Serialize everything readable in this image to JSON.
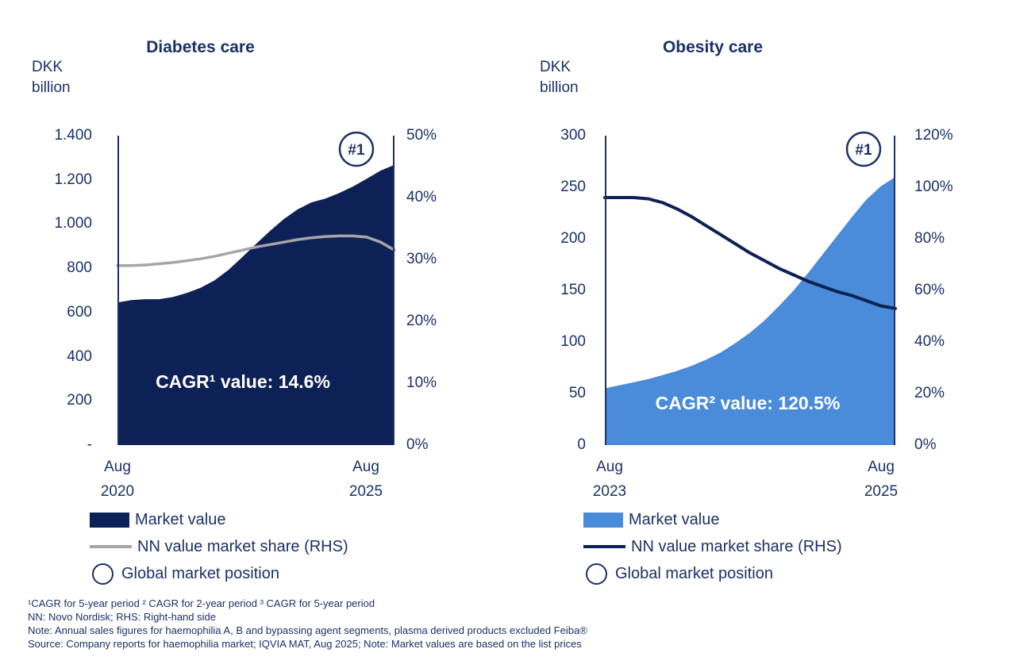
{
  "colors": {
    "navy_text": "#1B3166",
    "navy_fill": "#0E2156",
    "light_blue": "#4A8CD9",
    "gray_line": "#A6A6A6",
    "axis_line": "#1B3166",
    "white": "#FFFFFF"
  },
  "chart_data": [
    {
      "type": "area",
      "title": "Diabetes care",
      "unit_lines": [
        "DKK",
        "billion"
      ],
      "x_range": [
        "Aug 2020",
        "Aug 2025"
      ],
      "x_ticks": [
        {
          "line1": "Aug",
          "line2": "2020"
        },
        {
          "line1": "Aug",
          "line2": "2025"
        }
      ],
      "left_axis": {
        "min": 0,
        "max": 1400,
        "ticks": [
          "1.400",
          "1.200",
          "1.000",
          "800",
          "600",
          "400",
          "200",
          "-"
        ]
      },
      "right_axis": {
        "min": 0,
        "max": 50,
        "ticks": [
          "50%",
          "40%",
          "30%",
          "20%",
          "10%",
          "0%"
        ]
      },
      "annotation_cagr": "CAGR¹ value: 14.6%",
      "badge": "#1",
      "series": [
        {
          "name": "Market value",
          "type": "area",
          "axis": "left",
          "color": "#0E2156",
          "x": [
            0,
            0.05,
            0.1,
            0.15,
            0.2,
            0.25,
            0.3,
            0.35,
            0.4,
            0.45,
            0.5,
            0.55,
            0.6,
            0.65,
            0.7,
            0.75,
            0.8,
            0.85,
            0.9,
            0.95,
            1
          ],
          "values": [
            645,
            656,
            660,
            660,
            670,
            688,
            712,
            745,
            792,
            850,
            910,
            968,
            1022,
            1066,
            1098,
            1115,
            1140,
            1170,
            1205,
            1242,
            1268
          ]
        },
        {
          "name": "NN value market share (RHS)",
          "type": "line",
          "axis": "right",
          "color": "#A6A6A6",
          "x": [
            0,
            0.05,
            0.1,
            0.15,
            0.2,
            0.25,
            0.3,
            0.35,
            0.4,
            0.45,
            0.5,
            0.55,
            0.6,
            0.65,
            0.7,
            0.75,
            0.8,
            0.85,
            0.9,
            0.95,
            1
          ],
          "values": [
            29.0,
            29.0,
            29.1,
            29.3,
            29.5,
            29.8,
            30.1,
            30.5,
            31.0,
            31.5,
            32.0,
            32.4,
            32.8,
            33.2,
            33.5,
            33.7,
            33.8,
            33.8,
            33.6,
            32.8,
            31.5
          ]
        }
      ],
      "legend": [
        {
          "swatch": "area",
          "color": "#0E2156",
          "label": "Market value"
        },
        {
          "swatch": "line",
          "color": "#A6A6A6",
          "label": "NN value market share (RHS)"
        },
        {
          "swatch": "circle",
          "color": "#1B3166",
          "label": "Global market position"
        }
      ]
    },
    {
      "type": "area",
      "title": "Obesity care",
      "unit_lines": [
        "DKK",
        "billion"
      ],
      "x_range": [
        "Aug 2023",
        "Aug 2025"
      ],
      "x_ticks": [
        {
          "line1": "Aug",
          "line2": "2023"
        },
        {
          "line1": "Aug",
          "line2": "2025"
        }
      ],
      "left_axis": {
        "min": 0,
        "max": 300,
        "ticks": [
          "300",
          "250",
          "200",
          "150",
          "100",
          "50",
          "0"
        ]
      },
      "right_axis": {
        "min": 0,
        "max": 120,
        "ticks": [
          "120%",
          "100%",
          "80%",
          "60%",
          "40%",
          "20%",
          "0%"
        ]
      },
      "annotation_cagr": "CAGR² value: 120.5%",
      "badge": "#1",
      "series": [
        {
          "name": "Market value",
          "type": "area",
          "axis": "left",
          "color": "#4A8CD9",
          "x": [
            0,
            0.05,
            0.1,
            0.15,
            0.2,
            0.25,
            0.3,
            0.35,
            0.4,
            0.45,
            0.5,
            0.55,
            0.6,
            0.65,
            0.7,
            0.75,
            0.8,
            0.85,
            0.9,
            0.95,
            1
          ],
          "values": [
            55,
            58,
            61,
            64,
            68,
            72,
            77,
            83,
            90,
            99,
            109,
            121,
            135,
            150,
            167,
            185,
            203,
            221,
            238,
            251,
            260
          ]
        },
        {
          "name": "NN value market share (RHS)",
          "type": "line",
          "axis": "right",
          "color": "#0E2156",
          "x": [
            0,
            0.05,
            0.1,
            0.15,
            0.2,
            0.25,
            0.3,
            0.35,
            0.4,
            0.45,
            0.5,
            0.55,
            0.6,
            0.65,
            0.7,
            0.75,
            0.8,
            0.85,
            0.9,
            0.95,
            1
          ],
          "values": [
            96,
            96,
            96,
            95.5,
            94,
            91.5,
            88.5,
            85,
            81.5,
            78,
            74.5,
            71.5,
            68.5,
            66,
            63.5,
            61.5,
            59.5,
            58,
            56,
            54,
            53
          ]
        }
      ],
      "legend": [
        {
          "swatch": "area",
          "color": "#4A8CD9",
          "label": "Market value"
        },
        {
          "swatch": "line",
          "color": "#0E2156",
          "label": "NN value market share (RHS)"
        },
        {
          "swatch": "circle",
          "color": "#1B3166",
          "label": "Global market position"
        }
      ]
    }
  ],
  "footnotes": [
    "¹CAGR for 5-year period ² CAGR for 2-year period ³ CAGR for 5-year period",
    "NN: Novo Nordisk; RHS: Right-hand side",
    "Note: Annual sales figures for haemophilia A, B and bypassing agent segments, plasma derived products excluded Feiba®",
    "Source: Company reports for haemophilia market; IQVIA MAT, Aug 2025; Note: Market values are based on the list prices"
  ]
}
